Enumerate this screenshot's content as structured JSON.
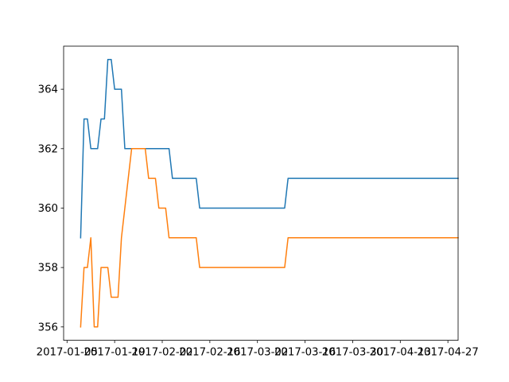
{
  "chart_data": {
    "type": "line",
    "title": "",
    "xlabel": "",
    "ylabel": "",
    "x_axis": {
      "kind": "date",
      "range": [
        "2017-01-04",
        "2017-04-30"
      ],
      "ticks": [
        "2017-01-05",
        "2017-01-19",
        "2017-02-02",
        "2017-02-16",
        "2017-03-02",
        "2017-03-16",
        "2017-03-30",
        "2017-04-13",
        "2017-04-27"
      ]
    },
    "y_axis": {
      "range": [
        355.55,
        365.45
      ],
      "ticks": [
        356,
        358,
        360,
        362,
        364
      ]
    },
    "grid": false,
    "legend": "none",
    "series": [
      {
        "color": "#1f77b4",
        "points": [
          [
            "2017-01-09",
            359
          ],
          [
            "2017-01-10",
            363
          ],
          [
            "2017-01-11",
            363
          ],
          [
            "2017-01-12",
            362
          ],
          [
            "2017-01-13",
            362
          ],
          [
            "2017-01-14",
            362
          ],
          [
            "2017-01-15",
            363
          ],
          [
            "2017-01-16",
            363
          ],
          [
            "2017-01-17",
            365
          ],
          [
            "2017-01-18",
            365
          ],
          [
            "2017-01-19",
            364
          ],
          [
            "2017-01-20",
            364
          ],
          [
            "2017-01-21",
            364
          ],
          [
            "2017-01-22",
            362
          ],
          [
            "2017-02-04",
            362
          ],
          [
            "2017-02-05",
            361
          ],
          [
            "2017-02-12",
            361
          ],
          [
            "2017-02-13",
            360
          ],
          [
            "2017-03-10",
            360
          ],
          [
            "2017-03-11",
            361
          ],
          [
            "2017-04-30",
            361
          ]
        ]
      },
      {
        "color": "#ff7f0e",
        "points": [
          [
            "2017-01-09",
            356
          ],
          [
            "2017-01-10",
            358
          ],
          [
            "2017-01-11",
            358
          ],
          [
            "2017-01-12",
            359
          ],
          [
            "2017-01-13",
            356
          ],
          [
            "2017-01-14",
            356
          ],
          [
            "2017-01-15",
            358
          ],
          [
            "2017-01-16",
            358
          ],
          [
            "2017-01-17",
            358
          ],
          [
            "2017-01-18",
            357
          ],
          [
            "2017-01-19",
            357
          ],
          [
            "2017-01-20",
            357
          ],
          [
            "2017-01-21",
            359
          ],
          [
            "2017-01-22",
            360
          ],
          [
            "2017-01-23",
            361
          ],
          [
            "2017-01-24",
            362
          ],
          [
            "2017-01-28",
            362
          ],
          [
            "2017-01-29",
            361
          ],
          [
            "2017-01-30",
            361
          ],
          [
            "2017-01-31",
            361
          ],
          [
            "2017-02-01",
            360
          ],
          [
            "2017-02-03",
            360
          ],
          [
            "2017-02-04",
            359
          ],
          [
            "2017-02-12",
            359
          ],
          [
            "2017-02-13",
            358
          ],
          [
            "2017-03-10",
            358
          ],
          [
            "2017-03-11",
            359
          ],
          [
            "2017-04-30",
            359
          ]
        ]
      }
    ]
  }
}
